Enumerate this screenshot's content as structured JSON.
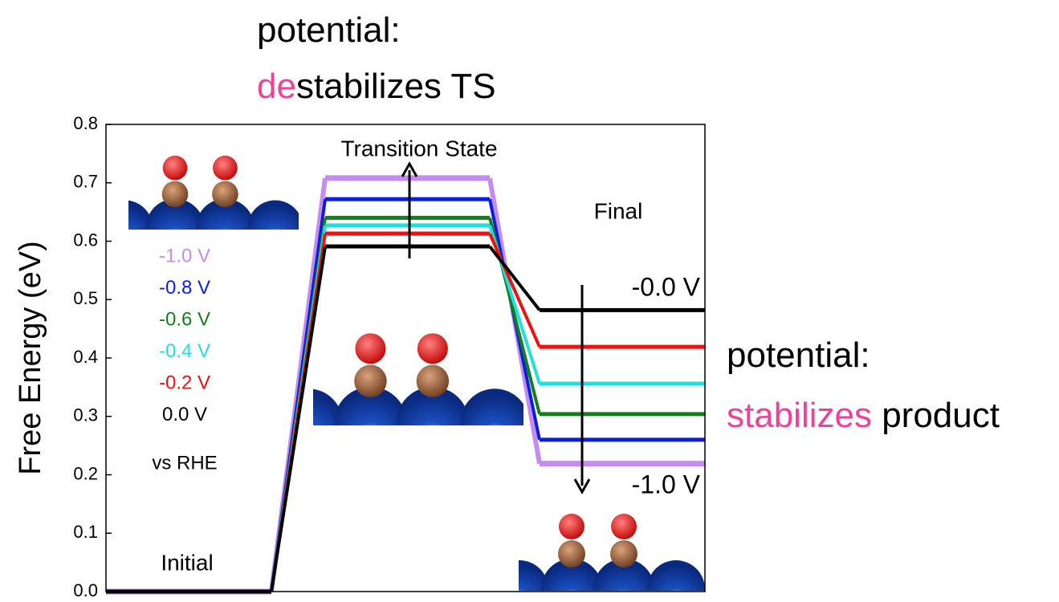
{
  "chart_data": {
    "type": "line",
    "ylabel": "Free Energy (eV)",
    "ylim": [
      0,
      0.8
    ],
    "yticks": [
      {
        "value": 0,
        "label": "0.0"
      },
      0.1,
      0.2,
      0.3,
      0.4,
      0.5,
      0.6,
      0.7,
      0.8
    ],
    "categories": [
      "Initial",
      "Transition State",
      "Final"
    ],
    "series": [
      {
        "name": "-1.0 V",
        "color": "#c58cf0",
        "values": [
          0,
          0.708,
          0.219
        ]
      },
      {
        "name": "-0.8 V",
        "color": "#0a1ee0",
        "values": [
          0,
          0.672,
          0.26
        ]
      },
      {
        "name": "-0.6 V",
        "color": "#12801a",
        "values": [
          0,
          0.64,
          0.304
        ]
      },
      {
        "name": "-0.4 V",
        "color": "#22dede",
        "values": [
          0,
          0.627,
          0.356
        ]
      },
      {
        "name": "-0.2 V",
        "color": "#f01010",
        "values": [
          0,
          0.613,
          0.419
        ]
      },
      {
        "name": "0.0 V",
        "color": "#000000",
        "values": [
          0,
          0.591,
          0.482
        ]
      }
    ],
    "reference": "vs RHE",
    "final_top_label": "-0.0 V",
    "final_bottom_label": "-1.0 V",
    "notes": [
      {
        "lines": [
          [
            {
              "text": "potential:",
              "color": "#000000"
            }
          ],
          [
            {
              "text": "de",
              "color": "#f0409a"
            },
            {
              "text": "stabilizes TS",
              "color": "#000000"
            }
          ]
        ]
      },
      {
        "lines": [
          [
            {
              "text": "potential:",
              "color": "#000000"
            }
          ],
          [
            {
              "text": "stabilizes",
              "color": "#f0409a"
            },
            {
              "text": " product",
              "color": "#000000"
            }
          ]
        ]
      }
    ]
  }
}
